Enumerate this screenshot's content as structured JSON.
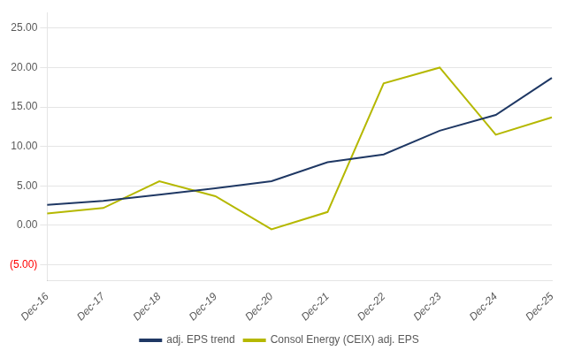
{
  "chart_data": {
    "type": "line",
    "categories": [
      "Dec-16",
      "Dec-17",
      "Dec-18",
      "Dec-19",
      "Dec-20",
      "Dec-21",
      "Dec-22",
      "Dec-23",
      "Dec-24",
      "Dec-25"
    ],
    "series": [
      {
        "name": "adj. EPS trend",
        "color": "#1f3864",
        "values": [
          2.6,
          3.1,
          3.9,
          4.7,
          5.6,
          8.0,
          9.0,
          12.0,
          14.0,
          18.7
        ]
      },
      {
        "name": "Consol Energy (CEIX) adj. EPS",
        "color": "#b5b800",
        "values": [
          1.5,
          2.2,
          5.6,
          3.7,
          -0.5,
          1.7,
          18.0,
          20.0,
          11.5,
          13.7
        ]
      }
    ],
    "ylim": [
      -7.0,
      27.0
    ],
    "yticks": [
      {
        "value": -5.0,
        "label": "(5.00)"
      },
      {
        "value": 0.0,
        "label": "0.00"
      },
      {
        "value": 5.0,
        "label": "5.00"
      },
      {
        "value": 10.0,
        "label": "10.00"
      },
      {
        "value": 15.0,
        "label": "15.00"
      },
      {
        "value": 20.0,
        "label": "20.00"
      },
      {
        "value": 25.0,
        "label": "25.00"
      }
    ],
    "grid": true,
    "legend": "bottom"
  }
}
